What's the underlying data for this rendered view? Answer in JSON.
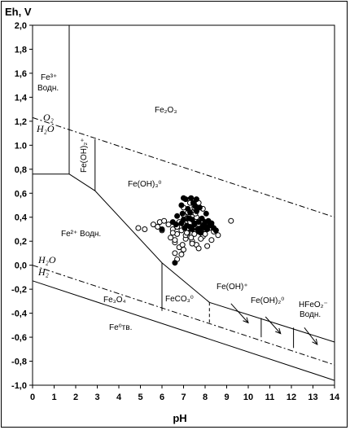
{
  "chart_data": {
    "type": "scatter",
    "ylabel": "Eh, V",
    "xlabel": "pH",
    "xlim": [
      0,
      14
    ],
    "ylim": [
      -1.0,
      2.0
    ],
    "xticks": [
      "0",
      "1",
      "2",
      "3",
      "4",
      "5",
      "6",
      "7",
      "8",
      "9",
      "10",
      "11",
      "12",
      "13",
      "14"
    ],
    "yticks": [
      "2,0",
      "1,8",
      "1,6",
      "1,4",
      "1,2",
      "1.0",
      "0,8",
      "0,6",
      "0,4",
      "0,2",
      "0,0",
      "-0,2",
      "-0,4",
      "-0,6",
      "-0,8",
      "-1,0"
    ],
    "grid": false,
    "legend": "none",
    "region_labels": {
      "fe3": "Fe³⁺",
      "fe3_aq": "Водн.",
      "fe2o3": "Fe₂O₃",
      "feoh2": "Fe(OH)₂⁺",
      "feoh3": "Fe(OH)₃⁰",
      "fe2": "Fe²⁺ Водн.",
      "o2": "O₂",
      "h2o_top": "H₂O",
      "h2o_bot": "H₂O",
      "h2": "H₂",
      "fe3o4": "Fe₃O₄",
      "feco3": "FeCO₃⁰",
      "feoh_plus": "Fe(OH)⁺",
      "feoh2_0": "Fe(OH)₂⁰",
      "hfeo2": "HFeO₂⁻",
      "hfeo2_aq": "Водн.",
      "fe0": "Fe⁰тв."
    },
    "boundaries": [
      {
        "style": "solid",
        "x": [
          1.7,
          1.7
        ],
        "y": [
          0.76,
          2.0
        ]
      },
      {
        "style": "solid",
        "x": [
          0,
          1.7
        ],
        "y": [
          0.76,
          0.76
        ]
      },
      {
        "style": "solid",
        "x": [
          1.7,
          2.9,
          6.0,
          8.2,
          14.0
        ],
        "y": [
          0.76,
          0.62,
          0.02,
          -0.31,
          -0.64
        ]
      },
      {
        "style": "solid",
        "x": [
          2.9,
          2.9
        ],
        "y": [
          0.62,
          1.05
        ]
      },
      {
        "style": "solid",
        "x": [
          6.0,
          6.0
        ],
        "y": [
          0.02,
          -0.38
        ]
      },
      {
        "style": "solid",
        "x": [
          10.6,
          10.6
        ],
        "y": [
          -0.44,
          -0.6
        ]
      },
      {
        "style": "solid",
        "x": [
          12.1,
          12.1
        ],
        "y": [
          -0.52,
          -0.69
        ]
      },
      {
        "style": "dashed",
        "x": [
          8.2,
          8.2
        ],
        "y": [
          -0.31,
          -0.49
        ]
      },
      {
        "style": "dashdot",
        "x": [
          0,
          14
        ],
        "y": [
          1.23,
          0.4
        ]
      },
      {
        "style": "dashdot",
        "x": [
          0,
          14
        ],
        "y": [
          0.0,
          -0.83
        ]
      },
      {
        "style": "solid",
        "x": [
          0,
          14
        ],
        "y": [
          -0.13,
          -0.96
        ]
      }
    ],
    "arrows": [
      {
        "x1": 9.2,
        "y1": -0.32,
        "x2": 10.0,
        "y2": -0.48
      },
      {
        "x1": 10.8,
        "y1": -0.43,
        "x2": 11.5,
        "y2": -0.57
      },
      {
        "x1": 12.6,
        "y1": -0.52,
        "x2": 13.2,
        "y2": -0.66
      }
    ],
    "series": [
      {
        "marker": "open",
        "x": [
          4.9,
          5.2,
          5.6,
          5.8,
          5.9,
          6.0,
          6.1,
          6.3,
          6.5,
          6.7,
          6.4,
          6.6,
          6.8,
          6.6,
          6.9,
          6.7,
          7.0,
          6.95,
          7.1,
          7.2,
          7.3,
          7.1,
          7.25,
          7.4,
          7.5,
          7.6,
          7.5,
          7.7,
          7.8,
          7.9,
          8.0,
          7.4,
          7.6,
          7.8,
          8.0,
          8.2,
          8.4,
          8.6,
          9.2,
          7.2,
          7.5,
          7.7,
          7.9,
          8.3,
          7.0,
          7.3,
          7.6,
          6.9,
          7.1,
          7.4,
          7.2,
          6.8,
          7.0,
          7.3,
          8.1,
          8.5,
          7.7,
          7.9,
          7.5,
          7.0,
          7.2,
          7.6,
          7.35,
          7.55,
          7.15,
          6.7,
          6.5,
          6.6,
          8.3,
          8.1
        ],
        "y": [
          0.31,
          0.3,
          0.34,
          0.32,
          0.36,
          0.29,
          0.37,
          0.34,
          0.3,
          0.26,
          0.23,
          0.19,
          0.15,
          0.1,
          0.09,
          0.05,
          0.13,
          0.17,
          0.22,
          0.27,
          0.31,
          0.35,
          0.4,
          0.44,
          0.48,
          0.45,
          0.38,
          0.33,
          0.28,
          0.24,
          0.3,
          0.2,
          0.17,
          0.22,
          0.26,
          0.31,
          0.28,
          0.25,
          0.37,
          0.44,
          0.5,
          0.52,
          0.47,
          0.33,
          0.42,
          0.55,
          0.4,
          0.29,
          0.25,
          0.18,
          0.31,
          0.36,
          0.48,
          0.52,
          0.35,
          0.29,
          0.14,
          0.37,
          0.26,
          0.34,
          0.39,
          0.31,
          0.23,
          0.43,
          0.27,
          0.32,
          0.27,
          0.21,
          0.21,
          0.16
        ]
      },
      {
        "marker": "filled",
        "x": [
          6.0,
          6.5,
          6.7,
          6.9,
          7.0,
          7.1,
          7.2,
          7.3,
          7.35,
          7.4,
          7.5,
          7.6,
          7.7,
          7.8,
          7.9,
          8.0,
          8.1,
          8.2,
          8.3,
          8.4,
          8.5,
          7.05,
          7.25,
          7.45,
          7.65,
          7.85,
          8.05,
          7.15,
          7.55,
          7.95,
          8.25,
          7.3,
          7.7,
          6.9,
          7.0,
          7.6,
          8.0,
          7.4,
          7.8,
          6.95,
          6.6,
          7.5,
          7.75,
          8.15,
          6.65
        ],
        "y": [
          0.3,
          0.36,
          0.41,
          0.5,
          0.56,
          0.55,
          0.47,
          0.44,
          0.56,
          0.38,
          0.34,
          0.45,
          0.36,
          0.31,
          0.33,
          0.36,
          0.3,
          0.33,
          0.35,
          0.31,
          0.29,
          0.31,
          0.39,
          0.52,
          0.3,
          0.39,
          0.43,
          0.33,
          0.49,
          0.34,
          0.34,
          0.32,
          0.28,
          0.35,
          0.38,
          0.55,
          0.31,
          0.3,
          0.27,
          0.43,
          0.02,
          0.35,
          0.48,
          0.37,
          0.34
        ]
      }
    ]
  }
}
